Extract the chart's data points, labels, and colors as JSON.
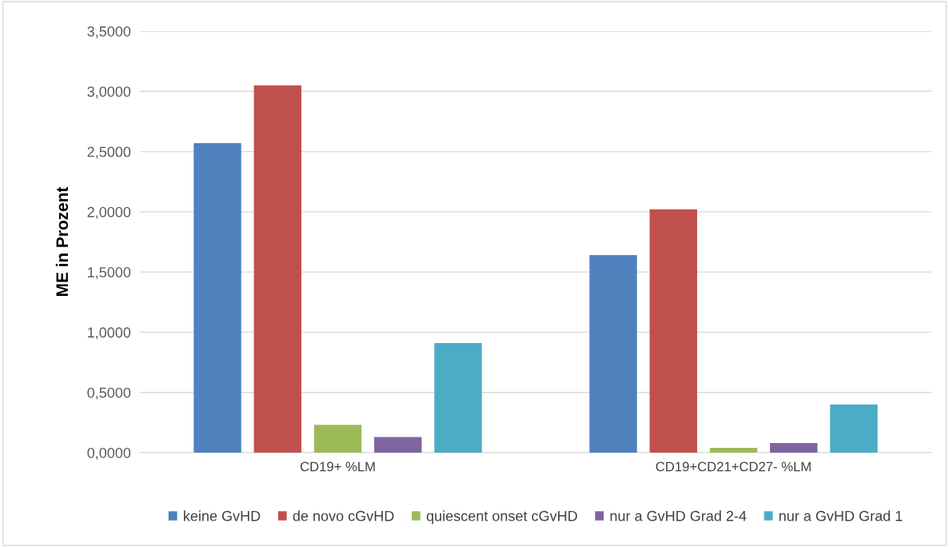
{
  "chart_data": {
    "type": "bar",
    "ylabel": "ME in Prozent",
    "categories": [
      "CD19+ %LM",
      "CD19+CD21+CD27- %LM"
    ],
    "series": [
      {
        "name": "keine GvHD",
        "color": "#4f81bd",
        "values": [
          2.57,
          1.64
        ]
      },
      {
        "name": "de novo cGvHD",
        "color": "#c0504d",
        "values": [
          3.05,
          2.02
        ]
      },
      {
        "name": "quiescent onset cGvHD",
        "color": "#9bbb59",
        "values": [
          0.23,
          0.04
        ]
      },
      {
        "name": "nur a GvHD Grad 2-4",
        "color": "#8064a2",
        "values": [
          0.13,
          0.08
        ]
      },
      {
        "name": "nur a GvHD Grad 1",
        "color": "#4bacc6",
        "values": [
          0.91,
          0.4
        ]
      }
    ],
    "ylim": [
      0,
      3.5
    ],
    "yticks": [
      {
        "value": 0,
        "label": "0,0000"
      },
      {
        "value": 0.5,
        "label": "0,5000"
      },
      {
        "value": 1,
        "label": "1,0000"
      },
      {
        "value": 1.5,
        "label": "1,5000"
      },
      {
        "value": 2,
        "label": "2,0000"
      },
      {
        "value": 2.5,
        "label": "2,5000"
      },
      {
        "value": 3,
        "label": "3,0000"
      },
      {
        "value": 3.5,
        "label": "3,5000"
      }
    ],
    "grid": "y",
    "legend": "bottom"
  }
}
